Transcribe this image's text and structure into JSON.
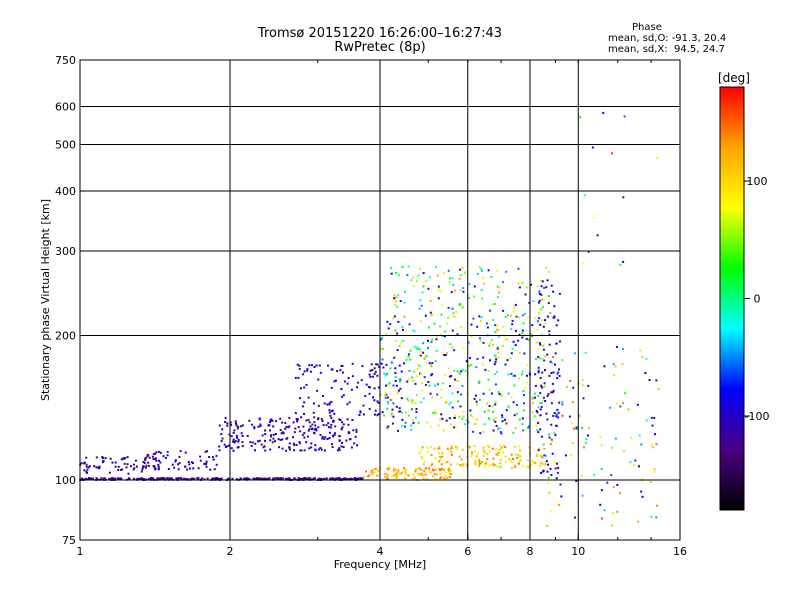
{
  "header": {
    "title_line1": "Tromsø 20151220 16:26:00–16:27:43",
    "title_line2": "RwPretec (8p)"
  },
  "phase_box": {
    "heading": "Phase",
    "o_line": "mean, sd,O: -91.3, 20.4",
    "x_line": "mean, sd,X:  94.5, 24.7"
  },
  "chart_data": {
    "type": "scatter",
    "xlabel": "Frequency [MHz]",
    "ylabel": "Stationary phase Virtual Height [km]",
    "x_scale": "log",
    "y_scale": "log",
    "xlim": [
      1,
      16
    ],
    "ylim": [
      75,
      750
    ],
    "x_ticks": [
      1,
      2,
      4,
      6,
      8,
      10,
      16
    ],
    "x_tick_labels": [
      "1",
      "2",
      "4",
      "6",
      "8",
      "10",
      "16"
    ],
    "y_ticks": [
      75,
      100,
      200,
      300,
      400,
      500,
      600,
      750
    ],
    "y_tick_labels": [
      "75",
      "100",
      "200",
      "300",
      "400",
      "500",
      "600",
      "750"
    ],
    "grid": true,
    "colorbar": {
      "label": "[deg]",
      "range": [
        -180,
        180
      ],
      "ticks": [
        100,
        0,
        -100
      ],
      "tick_labels": [
        "100",
        "0",
        "-100"
      ],
      "colors": [
        "#000000",
        "#4b0082",
        "#0000ff",
        "#00ffff",
        "#00ff00",
        "#ffff00",
        "#ffa500",
        "#ff0000"
      ]
    },
    "point_clusters": [
      {
        "x_range": [
          1.0,
          3.7
        ],
        "y_range": [
          100,
          101
        ],
        "phase_range": [
          -135,
          -105
        ],
        "count": 320
      },
      {
        "x_range": [
          1.0,
          1.45
        ],
        "y_range": [
          103,
          112
        ],
        "phase_range": [
          -130,
          -90
        ],
        "count": 70
      },
      {
        "x_range": [
          1.35,
          1.9
        ],
        "y_range": [
          105,
          115
        ],
        "phase_range": [
          -130,
          -90
        ],
        "count": 60
      },
      {
        "x_range": [
          1.9,
          3.6
        ],
        "y_range": [
          115,
          135
        ],
        "phase_range": [
          -130,
          -80
        ],
        "count": 230
      },
      {
        "x_range": [
          2.7,
          4.4
        ],
        "y_range": [
          135,
          175
        ],
        "phase_range": [
          -130,
          -80
        ],
        "count": 120
      },
      {
        "x_range": [
          3.7,
          5.6
        ],
        "y_range": [
          100,
          106
        ],
        "phase_range": [
          90,
          150
        ],
        "count": 110
      },
      {
        "x_range": [
          4.8,
          8.6
        ],
        "y_range": [
          106,
          118
        ],
        "phase_range": [
          60,
          150
        ],
        "count": 150
      },
      {
        "x_range": [
          4.0,
          8.6
        ],
        "y_range": [
          125,
          165
        ],
        "phase_range": [
          -140,
          120
        ],
        "count": 220
      },
      {
        "x_range": [
          4.0,
          8.6
        ],
        "y_range": [
          165,
          215
        ],
        "phase_range": [
          -140,
          120
        ],
        "count": 200
      },
      {
        "x_range": [
          4.2,
          8.8
        ],
        "y_range": [
          215,
          280
        ],
        "phase_range": [
          -140,
          140
        ],
        "count": 140
      },
      {
        "x_range": [
          8.3,
          9.2
        ],
        "y_range": [
          100,
          270
        ],
        "phase_range": [
          -130,
          -70
        ],
        "count": 90
      },
      {
        "x_range": [
          8.5,
          14.5
        ],
        "y_range": [
          80,
          190
        ],
        "phase_range": [
          -140,
          160
        ],
        "count": 130
      },
      {
        "x_range": [
          10.0,
          14.5
        ],
        "y_range": [
          260,
          590
        ],
        "phase_range": [
          -130,
          170
        ],
        "count": 14
      }
    ]
  }
}
